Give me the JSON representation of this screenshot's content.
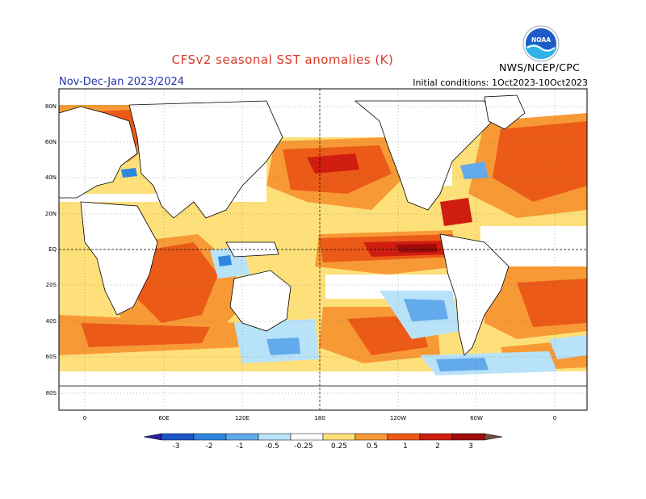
{
  "header": {
    "title": "CFSv2 seasonal SST anomalies (K)",
    "season": "Nov-Dec-Jan 2023/2024",
    "initial_conditions": "Initial conditions: 1Oct2023-10Oct2023",
    "agency": "NWS/NCEP/CPC",
    "logo_text": "NOAA"
  },
  "map": {
    "latitude_labels": [
      "80N",
      "60N",
      "40N",
      "20N",
      "EQ",
      "20S",
      "40S",
      "60S",
      "80S"
    ],
    "longitude_labels": [
      "0",
      "60E",
      "120E",
      "180",
      "120W",
      "60W",
      "0"
    ],
    "projection": "cylindrical equidistant, 0 to 360 longitude",
    "features": [
      "strong warm anomaly eastern equatorial Pacific (El Nino)",
      "warm North Pacific and North Atlantic",
      "cool anomalies south of Australia and near Antarctica"
    ]
  },
  "colorbar": {
    "labels": [
      "-3",
      "-2",
      "-1",
      "-0.5",
      "-0.25",
      "0.25",
      "0.5",
      "1",
      "2",
      "3"
    ],
    "colors": [
      "#2a1fa0",
      "#1c55c8",
      "#2f86e0",
      "#63aaec",
      "#b8e2f8",
      "#ffffff",
      "#fde07a",
      "#f79a36",
      "#ec5a18",
      "#cf1d10",
      "#a00c0a",
      "#7a4a3a"
    ]
  }
}
